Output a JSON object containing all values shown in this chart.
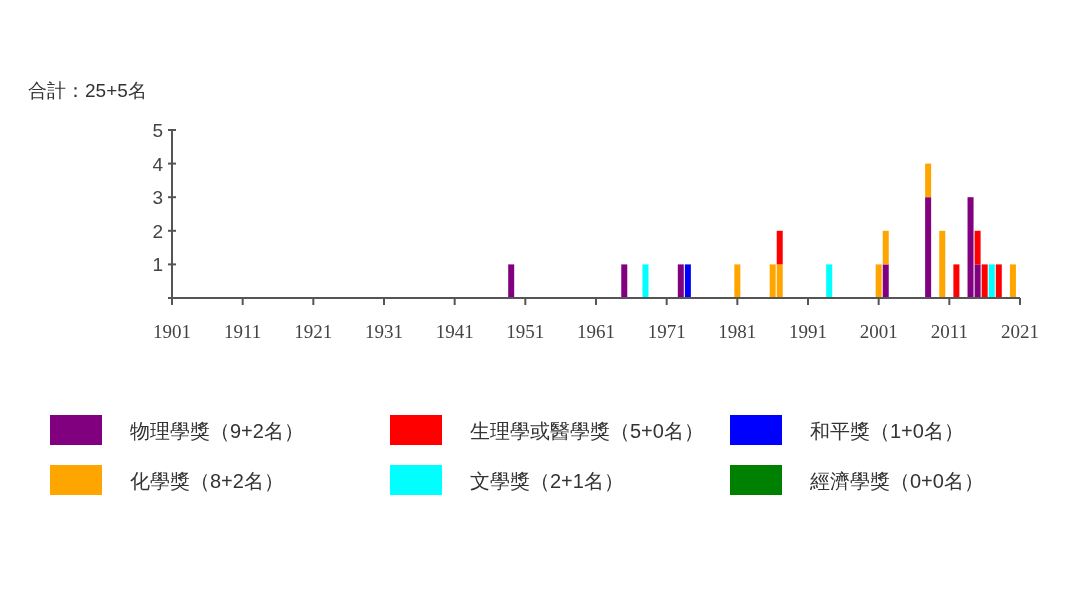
{
  "chart_data": {
    "type": "bar",
    "stacked": true,
    "title": "合計：25+5名",
    "x": [
      1949,
      1965,
      1968,
      1973,
      1974,
      1981,
      1986,
      1987,
      1994,
      2001,
      2002,
      2008,
      2010,
      2012,
      2014,
      2015,
      2016,
      2017,
      2018,
      2020
    ],
    "series": [
      {
        "name": "物理學獎（9+2名）",
        "color": "#800080",
        "values": [
          1,
          1,
          null,
          1,
          null,
          null,
          null,
          null,
          null,
          null,
          1,
          3,
          null,
          null,
          3,
          1,
          null,
          null,
          null,
          null
        ]
      },
      {
        "name": "化學獎（8+2名）",
        "color": "#ffa500",
        "values": [
          null,
          null,
          null,
          null,
          null,
          1,
          1,
          1,
          null,
          1,
          1,
          1,
          2,
          null,
          null,
          null,
          null,
          null,
          null,
          1
        ]
      },
      {
        "name": "生理學或醫學獎（5+0名）",
        "color": "#ff0000",
        "values": [
          null,
          null,
          null,
          null,
          null,
          null,
          null,
          1,
          null,
          null,
          null,
          null,
          null,
          1,
          null,
          1,
          1,
          null,
          1,
          null
        ]
      },
      {
        "name": "文學獎（2+1名）",
        "color": "#00ffff",
        "values": [
          null,
          null,
          1,
          null,
          null,
          null,
          null,
          null,
          1,
          null,
          null,
          null,
          null,
          null,
          null,
          null,
          null,
          1,
          null,
          null
        ]
      },
      {
        "name": "和平獎（1+0名）",
        "color": "#0000ff",
        "values": [
          null,
          null,
          null,
          null,
          1,
          null,
          null,
          null,
          null,
          null,
          null,
          null,
          null,
          null,
          null,
          null,
          null,
          null,
          null,
          null
        ]
      },
      {
        "name": "經濟學獎（0+0名）",
        "color": "#008000",
        "values": [
          null,
          null,
          null,
          null,
          null,
          null,
          null,
          null,
          null,
          null,
          null,
          null,
          null,
          null,
          null,
          null,
          null,
          null,
          null,
          null
        ]
      }
    ],
    "xlim": [
      1901,
      2021
    ],
    "xticks": [
      1901,
      1911,
      1921,
      1931,
      1941,
      1951,
      1961,
      1971,
      1981,
      1991,
      2001,
      2011,
      2021
    ],
    "ylim": [
      0,
      5
    ],
    "yticks": [
      {
        "value": 0,
        "label": null
      },
      1,
      2,
      3,
      4,
      5
    ],
    "grid": false,
    "legend": "bottom"
  }
}
